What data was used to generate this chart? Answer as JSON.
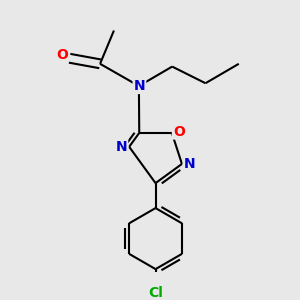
{
  "background_color": "#e8e8e8",
  "atom_colors": {
    "C": "#000000",
    "N": "#0000cc",
    "O": "#ff0000",
    "Cl": "#00aa00"
  },
  "bond_color": "#000000",
  "bond_width": 1.5,
  "figsize": [
    3.0,
    3.0
  ],
  "dpi": 100
}
